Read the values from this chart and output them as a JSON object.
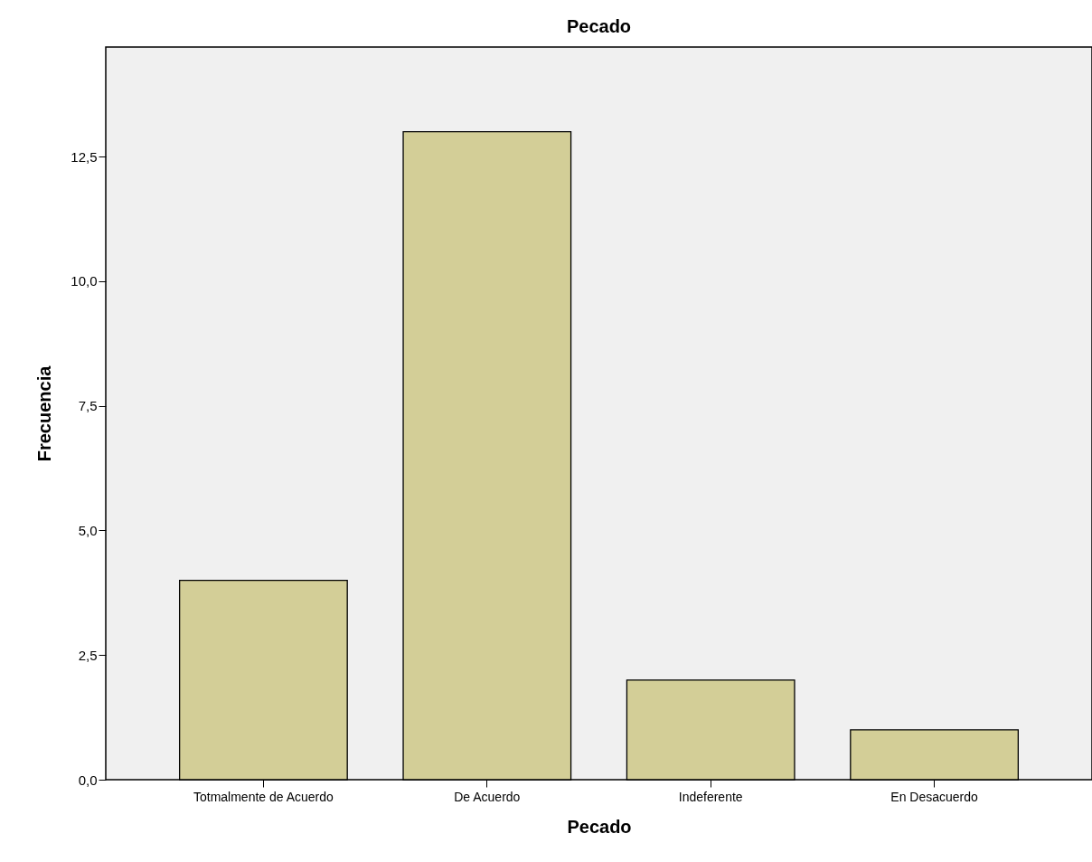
{
  "chart_data": {
    "type": "bar",
    "title": "Pecado",
    "xlabel": "Pecado",
    "ylabel": "Frecuencia",
    "categories": [
      "Totmalmente de Acuerdo",
      "De Acuerdo",
      "Indeferente",
      "En Desacuerdo"
    ],
    "values": [
      4,
      13,
      2,
      1
    ],
    "color": "#d3ce97",
    "ylim": [
      0,
      14.7
    ],
    "yticks": [
      {
        "value": 0,
        "label": "0,0"
      },
      {
        "value": 2.5,
        "label": "2,5"
      },
      {
        "value": 5,
        "label": "5,0"
      },
      {
        "value": 7.5,
        "label": "7,5"
      },
      {
        "value": 10,
        "label": "10,0"
      },
      {
        "value": 12.5,
        "label": "12,5"
      }
    ],
    "grid": false
  }
}
